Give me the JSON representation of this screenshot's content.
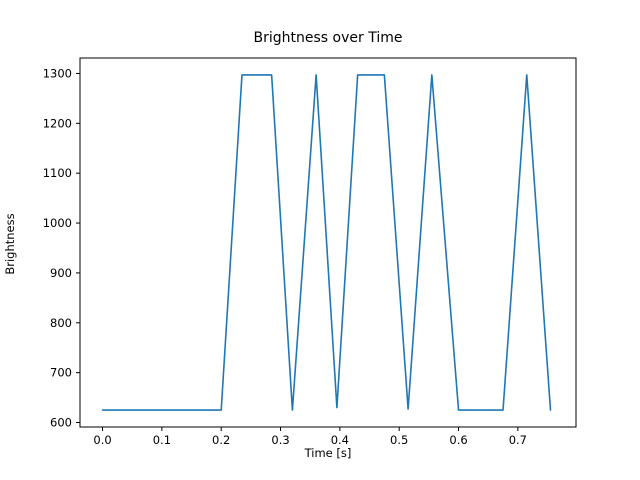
{
  "chart_data": {
    "type": "line",
    "title": "Brightness over Time",
    "xlabel": "Time [s]",
    "ylabel": "Brightness",
    "line_color": "#1f77b4",
    "axis_color": "#000000",
    "background_color": "#ffffff",
    "xlim": [
      -0.038,
      0.798
    ],
    "ylim": [
      591,
      1331
    ],
    "x_ticks": [
      0.0,
      0.1,
      0.2,
      0.3,
      0.4,
      0.5,
      0.6,
      0.7
    ],
    "x_tick_labels": [
      "0.0",
      "0.1",
      "0.2",
      "0.3",
      "0.4",
      "0.5",
      "0.6",
      "0.7"
    ],
    "y_ticks": [
      600,
      700,
      800,
      900,
      1000,
      1100,
      1200,
      1300
    ],
    "y_tick_labels": [
      "600",
      "700",
      "800",
      "900",
      "1000",
      "1100",
      "1200",
      "1300"
    ],
    "legend": "none",
    "grid": false,
    "points": [
      [
        0.0,
        625
      ],
      [
        0.2,
        625
      ],
      [
        0.235,
        1297
      ],
      [
        0.285,
        1297
      ],
      [
        0.32,
        625
      ],
      [
        0.36,
        1297
      ],
      [
        0.395,
        630
      ],
      [
        0.43,
        1297
      ],
      [
        0.475,
        1297
      ],
      [
        0.515,
        627
      ],
      [
        0.555,
        1297
      ],
      [
        0.6,
        625
      ],
      [
        0.675,
        625
      ],
      [
        0.715,
        1297
      ],
      [
        0.755,
        625
      ]
    ]
  }
}
